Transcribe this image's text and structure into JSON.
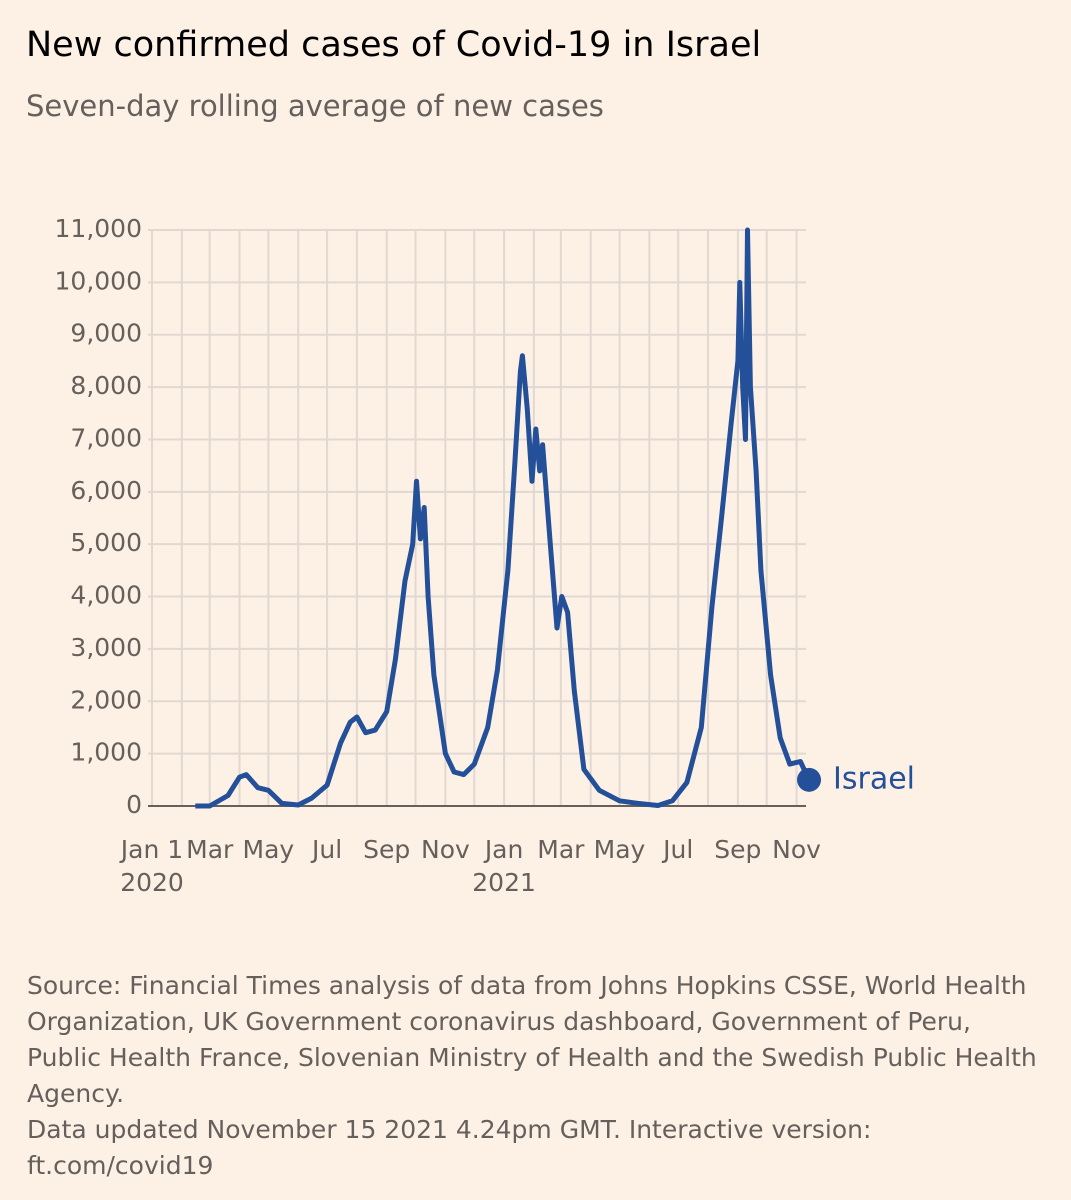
{
  "chart_data": {
    "type": "line",
    "title": "New confirmed cases of Covid-19 in Israel",
    "subtitle": "Seven-day rolling average of new cases",
    "x": [
      "2020-02-15",
      "2020-03-01",
      "2020-03-20",
      "2020-04-01",
      "2020-04-08",
      "2020-04-20",
      "2020-05-01",
      "2020-05-15",
      "2020-06-01",
      "2020-06-15",
      "2020-07-01",
      "2020-07-15",
      "2020-07-25",
      "2020-08-01",
      "2020-08-10",
      "2020-08-20",
      "2020-09-01",
      "2020-09-10",
      "2020-09-20",
      "2020-09-28",
      "2020-10-02",
      "2020-10-06",
      "2020-10-10",
      "2020-10-14",
      "2020-10-20",
      "2020-11-01",
      "2020-11-10",
      "2020-11-20",
      "2020-12-01",
      "2020-12-15",
      "2020-12-25",
      "2021-01-05",
      "2021-01-12",
      "2021-01-18",
      "2021-01-20",
      "2021-01-25",
      "2021-01-30",
      "2021-02-03",
      "2021-02-07",
      "2021-02-10",
      "2021-02-18",
      "2021-02-25",
      "2021-03-02",
      "2021-03-08",
      "2021-03-15",
      "2021-03-25",
      "2021-04-10",
      "2021-05-01",
      "2021-05-20",
      "2021-06-10",
      "2021-06-25",
      "2021-07-10",
      "2021-07-25",
      "2021-08-05",
      "2021-08-15",
      "2021-08-25",
      "2021-09-01",
      "2021-09-03",
      "2021-09-06",
      "2021-09-09",
      "2021-09-11",
      "2021-09-14",
      "2021-09-20",
      "2021-09-25",
      "2021-10-05",
      "2021-10-15",
      "2021-10-25",
      "2021-11-05",
      "2021-11-14"
    ],
    "series": [
      {
        "name": "Israel",
        "color": "#24509a",
        "values": [
          0,
          0,
          200,
          550,
          600,
          350,
          300,
          50,
          20,
          150,
          400,
          1200,
          1600,
          1700,
          1400,
          1450,
          1800,
          2800,
          4300,
          5000,
          6200,
          5100,
          5700,
          4000,
          2500,
          1000,
          650,
          600,
          800,
          1500,
          2600,
          4500,
          6500,
          8300,
          8600,
          7600,
          6200,
          7200,
          6400,
          6900,
          5000,
          3400,
          4000,
          3700,
          2200,
          700,
          300,
          100,
          50,
          10,
          100,
          450,
          1500,
          3800,
          5500,
          7300,
          8500,
          10000,
          8000,
          7000,
          11000,
          8000,
          6400,
          4500,
          2500,
          1300,
          800,
          850,
          500
        ]
      }
    ],
    "xlim": [
      "2020-01-01",
      "2021-11-15"
    ],
    "xticks": [
      {
        "value": "2020-01-01",
        "label": "Jan 1"
      },
      {
        "value": "2020-03-01",
        "label": "Mar"
      },
      {
        "value": "2020-05-01",
        "label": "May"
      },
      {
        "value": "2020-07-01",
        "label": "Jul"
      },
      {
        "value": "2020-09-01",
        "label": "Sep"
      },
      {
        "value": "2020-11-01",
        "label": "Nov"
      },
      {
        "value": "2021-01-01",
        "label": "Jan"
      },
      {
        "value": "2021-03-01",
        "label": "Mar"
      },
      {
        "value": "2021-05-01",
        "label": "May"
      },
      {
        "value": "2021-07-01",
        "label": "Jul"
      },
      {
        "value": "2021-09-01",
        "label": "Sep"
      },
      {
        "value": "2021-11-01",
        "label": "Nov"
      }
    ],
    "year_labels": [
      {
        "value": "2020-01-01",
        "label": "2020"
      },
      {
        "value": "2021-01-01",
        "label": "2021"
      }
    ],
    "xgrid": [
      "2020-01-01",
      "2020-02-01",
      "2020-03-01",
      "2020-04-01",
      "2020-05-01",
      "2020-06-01",
      "2020-07-01",
      "2020-08-01",
      "2020-09-01",
      "2020-10-01",
      "2020-11-01",
      "2020-12-01",
      "2021-01-01",
      "2021-02-01",
      "2021-03-01",
      "2021-04-01",
      "2021-05-01",
      "2021-06-01",
      "2021-07-01",
      "2021-08-01",
      "2021-09-01",
      "2021-10-01",
      "2021-11-01"
    ],
    "ylim": [
      0,
      11000
    ],
    "yticks": [
      0,
      {
        "value": 1000,
        "label": "1,000"
      },
      {
        "value": 2000,
        "label": "2,000"
      },
      {
        "value": 3000,
        "label": "3,000"
      },
      {
        "value": 4000,
        "label": "4,000"
      },
      {
        "value": 5000,
        "label": "5,000"
      },
      {
        "value": 6000,
        "label": "6,000"
      },
      {
        "value": 7000,
        "label": "7,000"
      },
      {
        "value": 8000,
        "label": "8,000"
      },
      {
        "value": 9000,
        "label": "9,000"
      },
      {
        "value": 10000,
        "label": "10,000"
      },
      {
        "value": 11000,
        "label": "11,000"
      }
    ],
    "grid": true,
    "source": "Source: Financial Times analysis of data from Johns Hopkins CSSE, World Health Organization, UK Government coronavirus dashboard, Government of Peru, Public Health France, Slovenian Ministry of Health and the Swedish Public Health Agency.",
    "note": "Data updated November 15 2021 4.24pm GMT. Interactive version: ft.com/covid19"
  }
}
